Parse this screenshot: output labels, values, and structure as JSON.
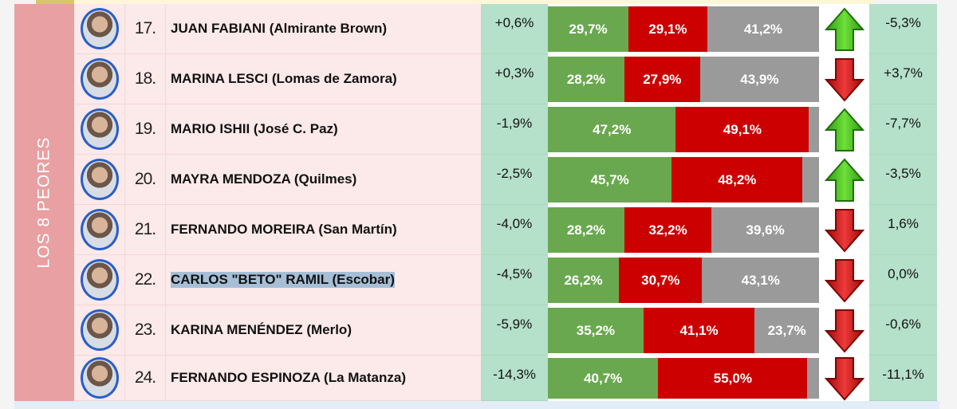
{
  "section_label": "LOS 8 PEORES",
  "colors": {
    "green": "#6aa84f",
    "red": "#cc0000",
    "grey": "#9a9a9a",
    "up_arrow": "#3fbf1f",
    "down_arrow": "#cc1010"
  },
  "rows": [
    {
      "rank": "17.",
      "name": "JUAN FABIANI (Almirante Brown)",
      "diff": "+0,6%",
      "bars": [
        {
          "v": 29.7,
          "label": "29,7%"
        },
        {
          "v": 29.1,
          "label": "29,1%"
        },
        {
          "v": 41.2,
          "label": "41,2%"
        }
      ],
      "trend": "up",
      "change": "-5,3%"
    },
    {
      "rank": "18.",
      "name": "MARINA LESCI (Lomas de Zamora)",
      "diff": "+0,3%",
      "bars": [
        {
          "v": 28.2,
          "label": "28,2%"
        },
        {
          "v": 27.9,
          "label": "27,9%"
        },
        {
          "v": 43.9,
          "label": "43,9%"
        }
      ],
      "trend": "down",
      "change": "+3,7%"
    },
    {
      "rank": "19.",
      "name": "MARIO ISHII (José C. Paz)",
      "diff": "-1,9%",
      "bars": [
        {
          "v": 47.2,
          "label": "47,2%"
        },
        {
          "v": 49.1,
          "label": "49,1%"
        },
        {
          "v": 3.7,
          "label": ""
        }
      ],
      "trend": "up",
      "change": "-7,7%"
    },
    {
      "rank": "20.",
      "name": "MAYRA MENDOZA (Quilmes)",
      "diff": "-2,5%",
      "bars": [
        {
          "v": 45.7,
          "label": "45,7%"
        },
        {
          "v": 48.2,
          "label": "48,2%"
        },
        {
          "v": 6.1,
          "label": ""
        }
      ],
      "trend": "up",
      "change": "-3,5%"
    },
    {
      "rank": "21.",
      "name": "FERNANDO MOREIRA (San Martín)",
      "diff": "-4,0%",
      "bars": [
        {
          "v": 28.2,
          "label": "28,2%"
        },
        {
          "v": 32.2,
          "label": "32,2%"
        },
        {
          "v": 39.6,
          "label": "39,6%"
        }
      ],
      "trend": "down",
      "change": "1,6%"
    },
    {
      "rank": "22.",
      "name": "CARLOS \"BETO\" RAMIL (Escobar)",
      "diff": "-4,5%",
      "bars": [
        {
          "v": 26.2,
          "label": "26,2%"
        },
        {
          "v": 30.7,
          "label": "30,7%"
        },
        {
          "v": 43.1,
          "label": "43,1%"
        }
      ],
      "trend": "down",
      "change": "0,0%",
      "selected": true
    },
    {
      "rank": "23.",
      "name": "KARINA MENÉNDEZ (Merlo)",
      "diff": "-5,9%",
      "bars": [
        {
          "v": 35.2,
          "label": "35,2%"
        },
        {
          "v": 41.1,
          "label": "41,1%"
        },
        {
          "v": 23.7,
          "label": "23,7%"
        }
      ],
      "trend": "down",
      "change": "-0,6%"
    },
    {
      "rank": "24.",
      "name": "FERNANDO ESPINOZA (La Matanza)",
      "diff": "-14,3%",
      "bars": [
        {
          "v": 40.7,
          "label": "40,7%"
        },
        {
          "v": 55.0,
          "label": "55,0%"
        },
        {
          "v": 4.3,
          "label": ""
        }
      ],
      "trend": "down",
      "change": "-11,1%"
    }
  ]
}
